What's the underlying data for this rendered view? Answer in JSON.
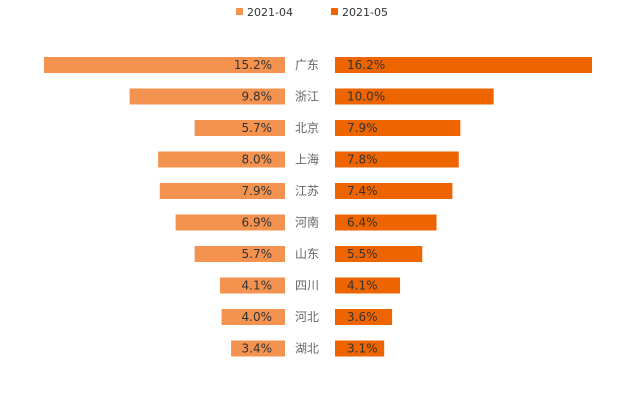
{
  "chart_data": {
    "type": "bar",
    "orientation": "horizontal-butterfly",
    "categories": [
      "广东",
      "浙江",
      "北京",
      "上海",
      "江苏",
      "河南",
      "山东",
      "四川",
      "河北",
      "湖北"
    ],
    "series": [
      {
        "name": "2021-04",
        "color": "#F4934F",
        "values": [
          15.2,
          9.8,
          5.7,
          8.0,
          7.9,
          6.9,
          5.7,
          4.1,
          4.0,
          3.4
        ],
        "labels": [
          "15.2%",
          "9.8%",
          "5.7%",
          "8.0%",
          "7.9%",
          "6.9%",
          "5.7%",
          "4.1%",
          "4.0%",
          "3.4%"
        ]
      },
      {
        "name": "2021-05",
        "color": "#EE6500",
        "values": [
          16.2,
          10.0,
          7.9,
          7.8,
          7.4,
          6.4,
          5.5,
          4.1,
          3.6,
          3.1
        ],
        "labels": [
          "16.2%",
          "10.0%",
          "7.9%",
          "7.8%",
          "7.4%",
          "6.4%",
          "5.5%",
          "4.1%",
          "3.6%",
          "3.1%"
        ]
      }
    ],
    "unit": "%",
    "legend_position": "top-center",
    "grid": false
  }
}
